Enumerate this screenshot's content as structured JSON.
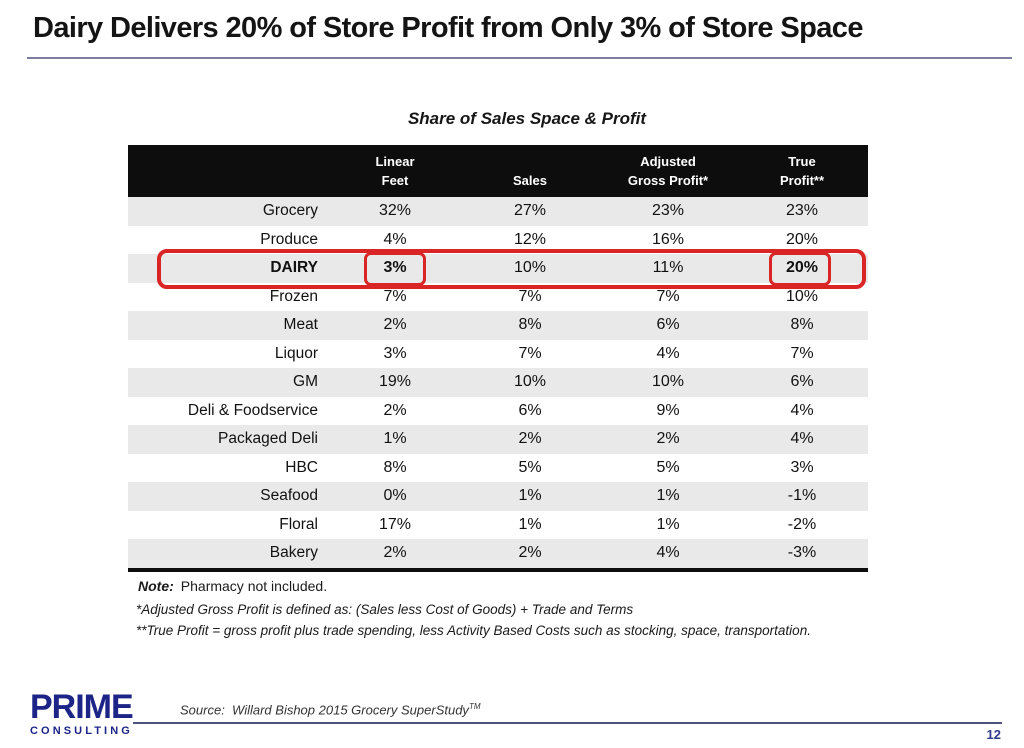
{
  "slide_title": "Dairy Delivers 20% of Store Profit from Only 3% of Store Space",
  "table": {
    "title": "Share of Sales Space & Profit",
    "headers": {
      "category": "",
      "linear_feet_line1": "Linear",
      "linear_feet_line2": "Feet",
      "sales": "Sales",
      "adjusted_gross_profit_line1": "Adjusted",
      "adjusted_gross_profit_line2": "Gross Profit*",
      "true_profit_line1": "True",
      "true_profit_line2": "Profit**"
    },
    "rows": [
      {
        "category": "Grocery",
        "values": [
          "32%",
          "27%",
          "23%",
          "23%"
        ],
        "highlight": false
      },
      {
        "category": "Produce",
        "values": [
          "4%",
          "12%",
          "16%",
          "20%"
        ],
        "highlight": false
      },
      {
        "category": "DAIRY",
        "values": [
          "3%",
          "10%",
          "11%",
          "20%"
        ],
        "highlight": true
      },
      {
        "category": "Frozen",
        "values": [
          "7%",
          "7%",
          "7%",
          "10%"
        ],
        "highlight": false
      },
      {
        "category": "Meat",
        "values": [
          "2%",
          "8%",
          "6%",
          "8%"
        ],
        "highlight": false
      },
      {
        "category": "Liquor",
        "values": [
          "3%",
          "7%",
          "4%",
          "7%"
        ],
        "highlight": false
      },
      {
        "category": "GM",
        "values": [
          "19%",
          "10%",
          "10%",
          "6%"
        ],
        "highlight": false
      },
      {
        "category": "Deli & Foodservice",
        "values": [
          "2%",
          "6%",
          "9%",
          "4%"
        ],
        "highlight": false
      },
      {
        "category": "Packaged Deli",
        "values": [
          "1%",
          "2%",
          "2%",
          "4%"
        ],
        "highlight": false
      },
      {
        "category": "HBC",
        "values": [
          "8%",
          "5%",
          "5%",
          "3%"
        ],
        "highlight": false
      },
      {
        "category": "Seafood",
        "values": [
          "0%",
          "1%",
          "1%",
          "-1%"
        ],
        "highlight": false
      },
      {
        "category": "Floral",
        "values": [
          "17%",
          "1%",
          "1%",
          "-2%"
        ],
        "highlight": false
      },
      {
        "category": "Bakery",
        "values": [
          "2%",
          "2%",
          "4%",
          "-3%"
        ],
        "highlight": false
      }
    ],
    "highlight_color": "#d92525"
  },
  "notes": {
    "note_label": "Note:",
    "note_text": "Pharmacy not included.",
    "footnote1": "*Adjusted Gross Profit is defined as: (Sales less Cost of Goods) + Trade and Terms",
    "footnote2": "**True Profit = gross profit plus trade spending, less Activity Based Costs such as stocking, space, transportation."
  },
  "footer": {
    "logo_line1": "PRIME",
    "logo_line2": "CONSULTING",
    "source_label": "Source:",
    "source_text": "Willard Bishop 2015 Grocery SuperStudy",
    "source_tm": "TM",
    "page_number": "12"
  },
  "colors": {
    "highlight_red": "#d92525",
    "logo_navy": "#1c2487",
    "row_stripe": "#e9e9e9",
    "title_underline": "#7d7da0",
    "header_bar": "#0d0d0d"
  }
}
